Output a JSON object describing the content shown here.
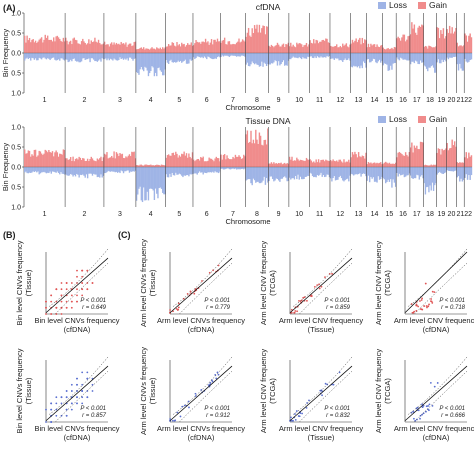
{
  "colors": {
    "loss": "#9fb4e6",
    "gain": "#f08c8c",
    "red": "#e05555",
    "blue": "#5a6fd0",
    "line": "#111111"
  },
  "figure": {
    "panel_a": "(A)",
    "panel_b": "(B)",
    "panel_c": "(C)"
  },
  "chart_data": [
    {
      "type": "area",
      "title": "cfDNA",
      "xlabel": "Chromosome",
      "ylabel": "Bin Frequency",
      "ylim": [
        -1.0,
        1.0
      ],
      "ytick_labels": [
        "1.0",
        "0.5",
        "0.0",
        "0.5",
        "1.0"
      ],
      "legend": [
        "Loss",
        "Gain"
      ],
      "legend_placement": "top-right",
      "chromosomes": [
        "1",
        "2",
        "3",
        "4",
        "5",
        "6",
        "7",
        "8",
        "9",
        "10",
        "11",
        "12",
        "13",
        "14",
        "15",
        "16",
        "17",
        "18",
        "19",
        "20",
        "21",
        "22"
      ],
      "gain_level": [
        0.35,
        0.3,
        0.22,
        0.12,
        0.22,
        0.28,
        0.3,
        0.55,
        0.2,
        0.2,
        0.28,
        0.2,
        0.3,
        0.2,
        0.12,
        0.4,
        0.6,
        0.15,
        0.5,
        0.6,
        0.2,
        0.4
      ],
      "loss_level": [
        0.15,
        0.18,
        0.15,
        0.45,
        0.22,
        0.12,
        0.08,
        0.3,
        0.25,
        0.12,
        0.1,
        0.18,
        0.3,
        0.2,
        0.35,
        0.15,
        0.25,
        0.4,
        0.2,
        0.12,
        0.35,
        0.2
      ]
    },
    {
      "type": "area",
      "title": "Tissue DNA",
      "xlabel": "Chromosome",
      "ylabel": "Bin Frequency",
      "ylim": [
        -1.0,
        1.0
      ],
      "ytick_labels": [
        "1.0",
        "0.5",
        "0.0",
        "0.5",
        "1.0"
      ],
      "legend": [
        "Loss",
        "Gain"
      ],
      "legend_placement": "top-right",
      "chromosomes": [
        "1",
        "2",
        "3",
        "4",
        "5",
        "6",
        "7",
        "8",
        "9",
        "10",
        "11",
        "12",
        "13",
        "14",
        "15",
        "16",
        "17",
        "18",
        "19",
        "20",
        "21",
        "22"
      ],
      "gain_level": [
        0.35,
        0.2,
        0.3,
        0.05,
        0.3,
        0.2,
        0.25,
        0.75,
        0.1,
        0.2,
        0.15,
        0.15,
        0.3,
        0.1,
        0.1,
        0.3,
        0.5,
        0.05,
        0.4,
        0.55,
        0.1,
        0.3
      ],
      "loss_level": [
        0.15,
        0.22,
        0.12,
        0.7,
        0.2,
        0.15,
        0.05,
        0.35,
        0.3,
        0.25,
        0.2,
        0.28,
        0.2,
        0.3,
        0.4,
        0.2,
        0.25,
        0.55,
        0.15,
        0.1,
        0.3,
        0.25
      ]
    },
    {
      "type": "scatter",
      "xlabel": "Bin level CNVs frequency\n(cfDNA)",
      "ylabel": "Bin level CNVs frequency\n(Tissue)",
      "p": "P < 0.001",
      "r": "r = 0.649",
      "color": "red",
      "xlim": [
        0,
        1
      ],
      "ylim": [
        0,
        1
      ]
    },
    {
      "type": "scatter",
      "xlabel": "Arm level CNVs frequency\n(cfDNA)",
      "ylabel": "Arm level CNVs frequency\n(Tissue)",
      "p": "P < 0.001",
      "r": "r = 0.779",
      "color": "red",
      "xlim": [
        0,
        1
      ],
      "ylim": [
        0,
        1
      ]
    },
    {
      "type": "scatter",
      "xlabel": "Arm level CNV frequency\n(Tissue)",
      "ylabel": "Arm level CNV frequency\n(TCGA)",
      "p": "P < 0.001",
      "r": "r = 0.859",
      "color": "red",
      "xlim": [
        0,
        1
      ],
      "ylim": [
        0,
        1
      ]
    },
    {
      "type": "scatter",
      "xlabel": "Arm level CNV frequency\n(cfDNA)",
      "ylabel": "Arm level CNV frequency\n(TCGA)",
      "p": "P < 0.001",
      "r": "r = 0.718",
      "color": "red",
      "xlim": [
        0,
        1
      ],
      "ylim": [
        0,
        1
      ]
    },
    {
      "type": "scatter",
      "xlabel": "Bin level CNVs frequency\n(cfDNA)",
      "ylabel": "Bin level CNVs frequency\n(Tissue)",
      "p": "P < 0.001",
      "r": "r = 0.857",
      "color": "blue",
      "xlim": [
        0,
        1
      ],
      "ylim": [
        0,
        1
      ]
    },
    {
      "type": "scatter",
      "xlabel": "Arm level CNVs frequency\n(cfDNA)",
      "ylabel": "Arm level CNVs frequency\n(Tissue)",
      "p": "P < 0.001",
      "r": "r = 0.912",
      "color": "blue",
      "xlim": [
        0,
        1
      ],
      "ylim": [
        0,
        1
      ]
    },
    {
      "type": "scatter",
      "xlabel": "Arm level CNV frequency\n(Tissue)",
      "ylabel": "Arm level CNV frequency\n(TCGA)",
      "p": "P < 0.001",
      "r": "r = 0.832",
      "color": "blue",
      "xlim": [
        0,
        1
      ],
      "ylim": [
        0,
        1
      ]
    },
    {
      "type": "scatter",
      "xlabel": "Arm level CNV frequency\n(cfDNA)",
      "ylabel": "Arm level CNV frequency\n(TCGA)",
      "p": "P < 0.001",
      "r": "r = 0.666",
      "color": "blue",
      "xlim": [
        0,
        1
      ],
      "ylim": [
        0,
        1
      ]
    }
  ]
}
